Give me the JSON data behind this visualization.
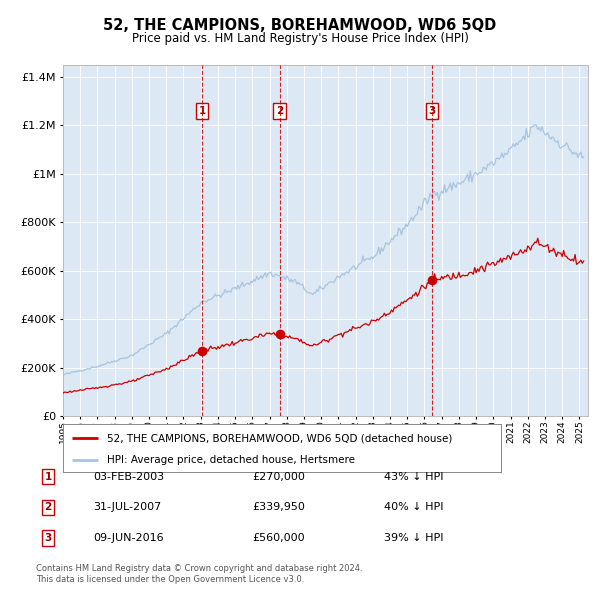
{
  "title": "52, THE CAMPIONS, BOREHAMWOOD, WD6 5QD",
  "subtitle": "Price paid vs. HM Land Registry's House Price Index (HPI)",
  "hpi_color": "#a8c4e0",
  "price_color": "#cc0000",
  "marker_color": "#cc0000",
  "bg_color": "#dce9f5",
  "transactions": [
    {
      "num": 1,
      "date": "03-FEB-2003",
      "date_float": 2003.09,
      "price": 270000,
      "label": "43% ↓ HPI"
    },
    {
      "num": 2,
      "date": "31-JUL-2007",
      "date_float": 2007.58,
      "price": 339950,
      "label": "40% ↓ HPI"
    },
    {
      "num": 3,
      "date": "09-JUN-2016",
      "date_float": 2016.44,
      "price": 560000,
      "label": "39% ↓ HPI"
    }
  ],
  "legend_price": "52, THE CAMPIONS, BOREHAMWOOD, WD6 5QD (detached house)",
  "legend_hpi": "HPI: Average price, detached house, Hertsmere",
  "footer1": "Contains HM Land Registry data © Crown copyright and database right 2024.",
  "footer2": "This data is licensed under the Open Government Licence v3.0.",
  "ylim": [
    0,
    1450000
  ],
  "xlim_start": 1995.0,
  "xlim_end": 2025.5,
  "hpi_anchors_x": [
    1995.0,
    1997.0,
    1999.0,
    2001.0,
    2003.09,
    2004.5,
    2007.0,
    2008.5,
    2009.5,
    2011.0,
    2013.0,
    2015.0,
    2016.44,
    2018.0,
    2019.5,
    2021.0,
    2022.5,
    2023.5,
    2025.2
  ],
  "hpi_anchors_y": [
    170000,
    205000,
    250000,
    340000,
    472000,
    510000,
    590000,
    555000,
    500000,
    575000,
    655000,
    790000,
    915000,
    960000,
    1020000,
    1095000,
    1200000,
    1145000,
    1065000
  ],
  "price_ratio_anchors_x": [
    1995.0,
    2003.09,
    2007.0,
    2009.5,
    2016.44,
    2020.0,
    2025.2
  ],
  "price_ratio_anchors_y": [
    0.565,
    0.572,
    0.576,
    0.576,
    0.612,
    0.6,
    0.595
  ]
}
